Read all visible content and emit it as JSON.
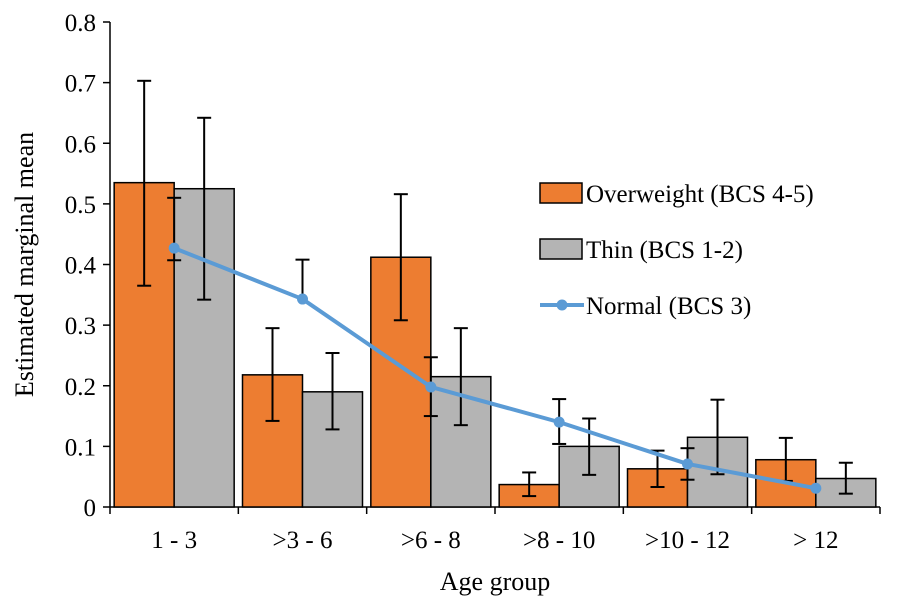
{
  "chart_data": {
    "type": "bar",
    "title": "",
    "xlabel": "Age group",
    "ylabel": "Estimated marginal mean",
    "ylim": [
      0,
      0.8
    ],
    "yticks": [
      "0",
      "0.1",
      "0.2",
      "0.3",
      "0.4",
      "0.5",
      "0.6",
      "0.7",
      "0.8"
    ],
    "categories": [
      "1 - 3",
      ">3 - 6",
      ">6 - 8",
      ">8 - 10",
      ">10 - 12",
      "> 12"
    ],
    "grid": false,
    "legend_position": "right",
    "series": [
      {
        "name": "Overweight (BCS 4-5)",
        "type": "bar",
        "color": "#ED7D31",
        "values": [
          0.535,
          0.218,
          0.412,
          0.037,
          0.063,
          0.078
        ],
        "err_low": [
          0.365,
          0.142,
          0.308,
          0.018,
          0.033,
          0.043
        ],
        "err_high": [
          0.703,
          0.295,
          0.516,
          0.057,
          0.093,
          0.114
        ]
      },
      {
        "name": "Thin (BCS 1-2)",
        "type": "bar",
        "color": "#B4B4B4",
        "values": [
          0.525,
          0.19,
          0.215,
          0.1,
          0.115,
          0.047
        ],
        "err_low": [
          0.342,
          0.128,
          0.135,
          0.053,
          0.054,
          0.022
        ],
        "err_high": [
          0.642,
          0.254,
          0.295,
          0.146,
          0.177,
          0.073
        ]
      },
      {
        "name": "Normal (BCS 3)",
        "type": "line",
        "color": "#5B9BD5",
        "values": [
          0.427,
          0.343,
          0.198,
          0.14,
          0.071,
          0.031
        ],
        "err_low": [
          0.407,
          null,
          0.15,
          0.104,
          0.045,
          null
        ],
        "err_high": [
          0.51,
          0.408,
          0.247,
          0.178,
          0.097,
          null
        ]
      }
    ]
  }
}
